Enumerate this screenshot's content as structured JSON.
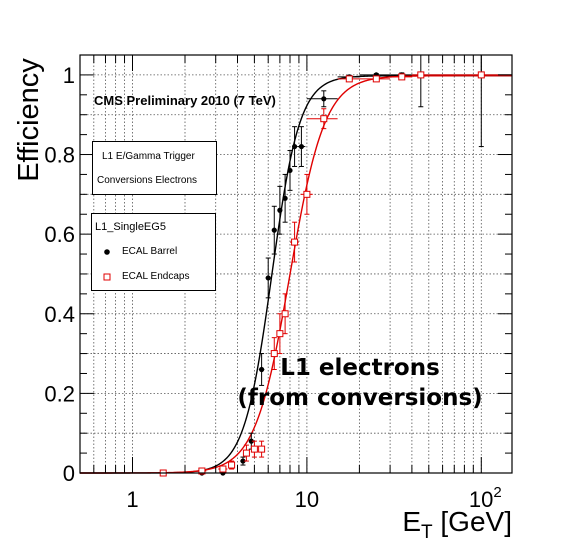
{
  "chart_data": {
    "type": "scatter",
    "ylabel": "Efficiency",
    "xlabel": {
      "main": "E",
      "sub": "T",
      "rest": " [GeV]"
    },
    "xscale": "log",
    "xlim": [
      0.5,
      150
    ],
    "ylim": [
      0,
      1.05
    ],
    "grid": true,
    "x_tick_labels": [
      {
        "value": 1,
        "label": "1"
      },
      {
        "value": 10,
        "label": "10"
      },
      {
        "value": 100,
        "base": "10",
        "exp": "2"
      }
    ],
    "y_tick_labels": [
      {
        "value": 0,
        "label": "0"
      },
      {
        "value": 0.2,
        "label": "0.2"
      },
      {
        "value": 0.4,
        "label": "0.4"
      },
      {
        "value": 0.6,
        "label": "0.6"
      },
      {
        "value": 0.8,
        "label": "0.8"
      },
      {
        "value": 1,
        "label": "1"
      }
    ],
    "annotations": {
      "preliminary": "CMS Preliminary 2010 (7 TeV)",
      "big_line1": "L1 electrons",
      "big_line2": "(from conversions)"
    },
    "info_box": {
      "line1": "L1 E/Gamma Trigger",
      "line2": "Conversions Electrons"
    },
    "legend": {
      "header": "L1_SingleEG5",
      "placement": "left",
      "entries": [
        "ECAL Barrel",
        "ECAL Endcaps"
      ]
    },
    "series": [
      {
        "name": "ECAL Barrel",
        "marker": "filled-circle",
        "color": "#000000",
        "points": [
          {
            "x": 1.5,
            "y": 0.0,
            "err": 0.003,
            "xerr": [
              0.1,
              0.1
            ]
          },
          {
            "x": 2.5,
            "y": 0.0,
            "err": 0.003,
            "xerr": [
              0.15,
              0.15
            ]
          },
          {
            "x": 3.3,
            "y": 0.0,
            "err": 0.005,
            "xerr": [
              0.2,
              0.2
            ]
          },
          {
            "x": 4.3,
            "y": 0.03,
            "err": 0.01,
            "xerr": [
              0.15,
              0.15
            ]
          },
          {
            "x": 4.8,
            "y": 0.08,
            "err": 0.02,
            "xerr": [
              0.15,
              0.15
            ]
          },
          {
            "x": 5.5,
            "y": 0.26,
            "err": 0.04,
            "xerr": [
              0.2,
              0.2
            ]
          },
          {
            "x": 6.0,
            "y": 0.49,
            "err": 0.05,
            "xerr": [
              0.2,
              0.2
            ]
          },
          {
            "x": 6.5,
            "y": 0.61,
            "err": 0.06,
            "xerr": [
              0.2,
              0.2
            ]
          },
          {
            "x": 7.0,
            "y": 0.66,
            "err": 0.06,
            "xerr": [
              0.2,
              0.2
            ]
          },
          {
            "x": 7.5,
            "y": 0.69,
            "err": 0.06,
            "xerr": [
              0.2,
              0.2
            ]
          },
          {
            "x": 8.0,
            "y": 0.76,
            "err": 0.05,
            "xerr": [
              0.2,
              0.2
            ]
          },
          {
            "x": 8.5,
            "y": 0.82,
            "err": 0.05,
            "xerr": [
              0.25,
              0.25
            ]
          },
          {
            "x": 9.3,
            "y": 0.82,
            "err": 0.05,
            "xerr": [
              0.5,
              0.5
            ]
          },
          {
            "x": 12.5,
            "y": 0.94,
            "err": 0.02,
            "xerr": [
              2.5,
              2.5
            ]
          },
          {
            "x": 17.5,
            "y": 0.995,
            "err": 0.004,
            "xerr": [
              2.5,
              2.5
            ]
          },
          {
            "x": 25,
            "y": 1.0,
            "err": 0.003,
            "xerr": [
              5,
              5
            ]
          },
          {
            "x": 35,
            "y": 1.0,
            "err": 0.005,
            "xerr": [
              5,
              5
            ]
          },
          {
            "x": 45,
            "y": 1.0,
            "err": 0.08,
            "xerr": [
              5,
              5
            ]
          },
          {
            "x": 100,
            "y": 1.0,
            "err": 0.18,
            "xerr": [
              50,
              50
            ]
          }
        ]
      },
      {
        "name": "ECAL Endcaps",
        "marker": "open-square",
        "color": "#e00000",
        "points": [
          {
            "x": 1.5,
            "y": 0.0,
            "err": 0.003,
            "xerr": [
              0.1,
              0.1
            ]
          },
          {
            "x": 2.5,
            "y": 0.005,
            "err": 0.005,
            "xerr": [
              0.15,
              0.15
            ]
          },
          {
            "x": 3.3,
            "y": 0.01,
            "err": 0.005,
            "xerr": [
              0.2,
              0.2
            ]
          },
          {
            "x": 3.7,
            "y": 0.02,
            "err": 0.01,
            "xerr": [
              0.15,
              0.15
            ]
          },
          {
            "x": 4.5,
            "y": 0.05,
            "err": 0.02,
            "xerr": [
              0.2,
              0.2
            ]
          },
          {
            "x": 5.0,
            "y": 0.06,
            "err": 0.02,
            "xerr": [
              0.2,
              0.2
            ]
          },
          {
            "x": 5.5,
            "y": 0.06,
            "err": 0.02,
            "xerr": [
              0.2,
              0.2
            ]
          },
          {
            "x": 6.5,
            "y": 0.3,
            "err": 0.04,
            "xerr": [
              0.2,
              0.2
            ]
          },
          {
            "x": 7.0,
            "y": 0.35,
            "err": 0.05,
            "xerr": [
              0.2,
              0.2
            ]
          },
          {
            "x": 7.5,
            "y": 0.4,
            "err": 0.05,
            "xerr": [
              0.2,
              0.2
            ]
          },
          {
            "x": 8.5,
            "y": 0.58,
            "err": 0.05,
            "xerr": [
              0.5,
              0.5
            ]
          },
          {
            "x": 10,
            "y": 0.7,
            "err": 0.05,
            "xerr": [
              0.8,
              0.8
            ]
          },
          {
            "x": 12.5,
            "y": 0.89,
            "err": 0.025,
            "xerr": [
              2.5,
              2.5
            ]
          },
          {
            "x": 17.5,
            "y": 0.99,
            "err": 0.005,
            "xerr": [
              2.5,
              2.5
            ]
          },
          {
            "x": 25,
            "y": 0.99,
            "err": 0.005,
            "xerr": [
              5,
              5
            ]
          },
          {
            "x": 35,
            "y": 0.995,
            "err": 0.005,
            "xerr": [
              5,
              5
            ]
          },
          {
            "x": 45,
            "y": 1.0,
            "err": 0.005,
            "xerr": [
              5,
              5
            ]
          },
          {
            "x": 100,
            "y": 1.0,
            "err": 0.005,
            "xerr": [
              50,
              50
            ]
          }
        ]
      }
    ],
    "fits": [
      {
        "series": "ECAL Barrel",
        "color": "#000000",
        "midpoint": 6.3,
        "width": 0.08
      },
      {
        "series": "ECAL Endcaps",
        "color": "#e00000",
        "midpoint": 8.0,
        "width": 0.1
      }
    ]
  }
}
